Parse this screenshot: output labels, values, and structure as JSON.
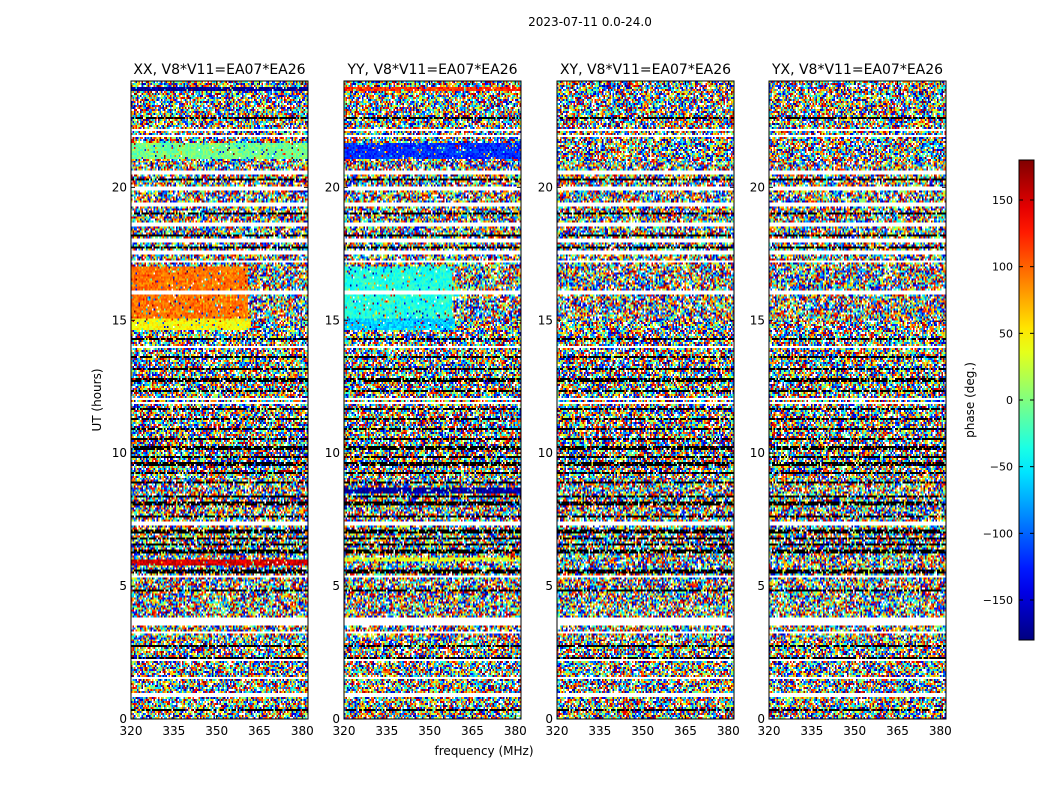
{
  "figure": {
    "suptitle": "2023-07-11 0.0-24.0"
  },
  "chart_data": [
    {
      "type": "heatmap",
      "title": "XX, V8*V11=EA07*EA26",
      "xlabel": "",
      "ylabel": "UT (hours)",
      "xlim": [
        320,
        382
      ],
      "ylim": [
        0,
        24
      ],
      "xticks": [
        "320",
        "335",
        "350",
        "365",
        "380"
      ],
      "yticks": [
        "0",
        "5",
        "10",
        "15",
        "20"
      ],
      "value_range": [
        -180,
        180
      ],
      "coherent_bands": [
        {
          "t0": 14.6,
          "t1": 15.05,
          "f0": 320,
          "f1": 362,
          "phase": 45
        },
        {
          "t0": 14.6,
          "t1": 15.05,
          "f0": 362,
          "f1": 382,
          "phase": null
        },
        {
          "t0": 15.1,
          "t1": 17.0,
          "f0": 320,
          "f1": 361,
          "phase": 95
        },
        {
          "t0": 5.8,
          "t1": 6.0,
          "f0": 320,
          "f1": 382,
          "phase": 150
        },
        {
          "t0": 21.1,
          "t1": 21.7,
          "f0": 320,
          "f1": 382,
          "phase": -5
        },
        {
          "t0": 23.6,
          "t1": 23.75,
          "f0": 320,
          "f1": 382,
          "phase": -175
        }
      ]
    },
    {
      "type": "heatmap",
      "title": "YY, V8*V11=EA07*EA26",
      "xlabel": "frequency (MHz)",
      "ylabel": "",
      "xlim": [
        320,
        382
      ],
      "ylim": [
        0,
        24
      ],
      "xticks": [
        "320",
        "335",
        "350",
        "365",
        "380"
      ],
      "yticks": [
        "0",
        "5",
        "10",
        "15",
        "20"
      ],
      "value_range": [
        -180,
        180
      ],
      "coherent_bands": [
        {
          "t0": 14.6,
          "t1": 15.05,
          "f0": 320,
          "f1": 359,
          "phase": -60
        },
        {
          "t0": 15.1,
          "t1": 17.0,
          "f0": 320,
          "f1": 358,
          "phase": -35
        },
        {
          "t0": 5.9,
          "t1": 6.1,
          "f0": 320,
          "f1": 382,
          "phase": 35
        },
        {
          "t0": 8.5,
          "t1": 8.7,
          "f0": 320,
          "f1": 382,
          "phase": -170
        },
        {
          "t0": 21.1,
          "t1": 21.7,
          "f0": 320,
          "f1": 382,
          "phase": -120
        },
        {
          "t0": 23.6,
          "t1": 23.75,
          "f0": 320,
          "f1": 382,
          "phase": 120
        }
      ]
    },
    {
      "type": "heatmap",
      "title": "XY, V8*V11=EA07*EA26",
      "xlabel": "",
      "ylabel": "",
      "xlim": [
        320,
        382
      ],
      "ylim": [
        0,
        24
      ],
      "xticks": [
        "320",
        "335",
        "350",
        "365",
        "380"
      ],
      "yticks": [
        "0",
        "5",
        "10",
        "15",
        "20"
      ],
      "value_range": [
        -180,
        180
      ],
      "coherent_bands": []
    },
    {
      "type": "heatmap",
      "title": "YX, V8*V11=EA07*EA26",
      "xlabel": "",
      "ylabel": "",
      "xlim": [
        320,
        382
      ],
      "ylim": [
        0,
        24
      ],
      "xticks": [
        "320",
        "335",
        "350",
        "365",
        "380"
      ],
      "yticks": [
        "0",
        "5",
        "10",
        "15",
        "20"
      ],
      "value_range": [
        -180,
        180
      ],
      "coherent_bands": []
    }
  ],
  "flagged_gaps_hours": [
    0.9,
    1.55,
    2.2,
    3.25,
    3.6,
    3.75,
    5.35,
    7.35,
    11.9,
    12.05,
    14.0,
    16.05,
    17.2,
    17.55,
    18.0,
    18.6,
    19.35,
    19.9,
    20.0,
    20.55,
    21.95,
    22.15
  ],
  "dark_rows_hours": [
    0.35,
    2.25,
    2.75,
    4.85,
    5.55,
    6.3,
    6.55,
    6.8,
    7.05,
    7.6,
    8.1,
    8.35,
    8.9,
    9.25,
    9.6,
    9.85,
    10.2,
    10.55,
    10.9,
    11.3,
    11.65,
    12.35,
    12.75,
    13.15,
    13.6,
    14.3,
    17.75,
    18.2,
    19.0,
    20.3,
    22.6
  ],
  "colorbar": {
    "label": "phase (deg.)",
    "range": [
      -180,
      180
    ],
    "ticks": [
      "150",
      "100",
      "50",
      "0",
      "−50",
      "−100",
      "−150"
    ],
    "tick_values": [
      150,
      100,
      50,
      0,
      -50,
      -100,
      -150
    ]
  }
}
